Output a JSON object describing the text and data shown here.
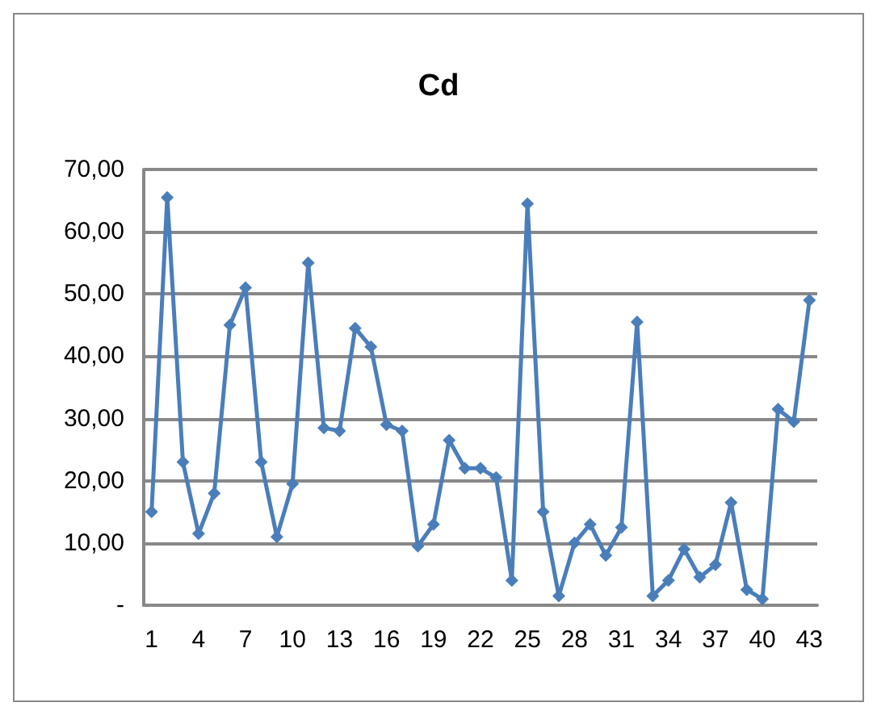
{
  "chart_data": {
    "type": "line",
    "title": "Cd",
    "categories": [
      "1",
      null,
      null,
      "4",
      null,
      null,
      "7",
      null,
      null,
      "10",
      null,
      null,
      "13",
      null,
      null,
      "16",
      null,
      null,
      "19",
      null,
      null,
      "22",
      null,
      null,
      "25",
      null,
      null,
      "28",
      null,
      null,
      "31",
      null,
      null,
      "34",
      null,
      null,
      "37",
      null,
      null,
      "40",
      null,
      null,
      "43"
    ],
    "series": [
      {
        "color": "#4a7ebb",
        "values": [
          15,
          65.5,
          23,
          11.5,
          18,
          45,
          51,
          23,
          11,
          19.5,
          55,
          28.5,
          28,
          44.5,
          41.5,
          29,
          28,
          9.5,
          13,
          26.5,
          22,
          22,
          20.5,
          4,
          64.5,
          15,
          1.5,
          10,
          13,
          8,
          12.5,
          45.5,
          1.5,
          4,
          9,
          4.5,
          6.5,
          16.5,
          2.5,
          1,
          31.5,
          29.5,
          49
        ]
      }
    ],
    "ylim": [
      0,
      70
    ],
    "yticks": [
      {
        "value": 0,
        "label": "-"
      },
      {
        "value": 10,
        "label": "10,00"
      },
      {
        "value": 20,
        "label": "20,00"
      },
      {
        "value": 30,
        "label": "30,00"
      },
      {
        "value": 40,
        "label": "40,00"
      },
      {
        "value": 50,
        "label": "50,00"
      },
      {
        "value": 60,
        "label": "60,00"
      },
      {
        "value": 70,
        "label": "70,00"
      }
    ],
    "grid": "y",
    "marker": "diamond",
    "line_style": "solid"
  }
}
